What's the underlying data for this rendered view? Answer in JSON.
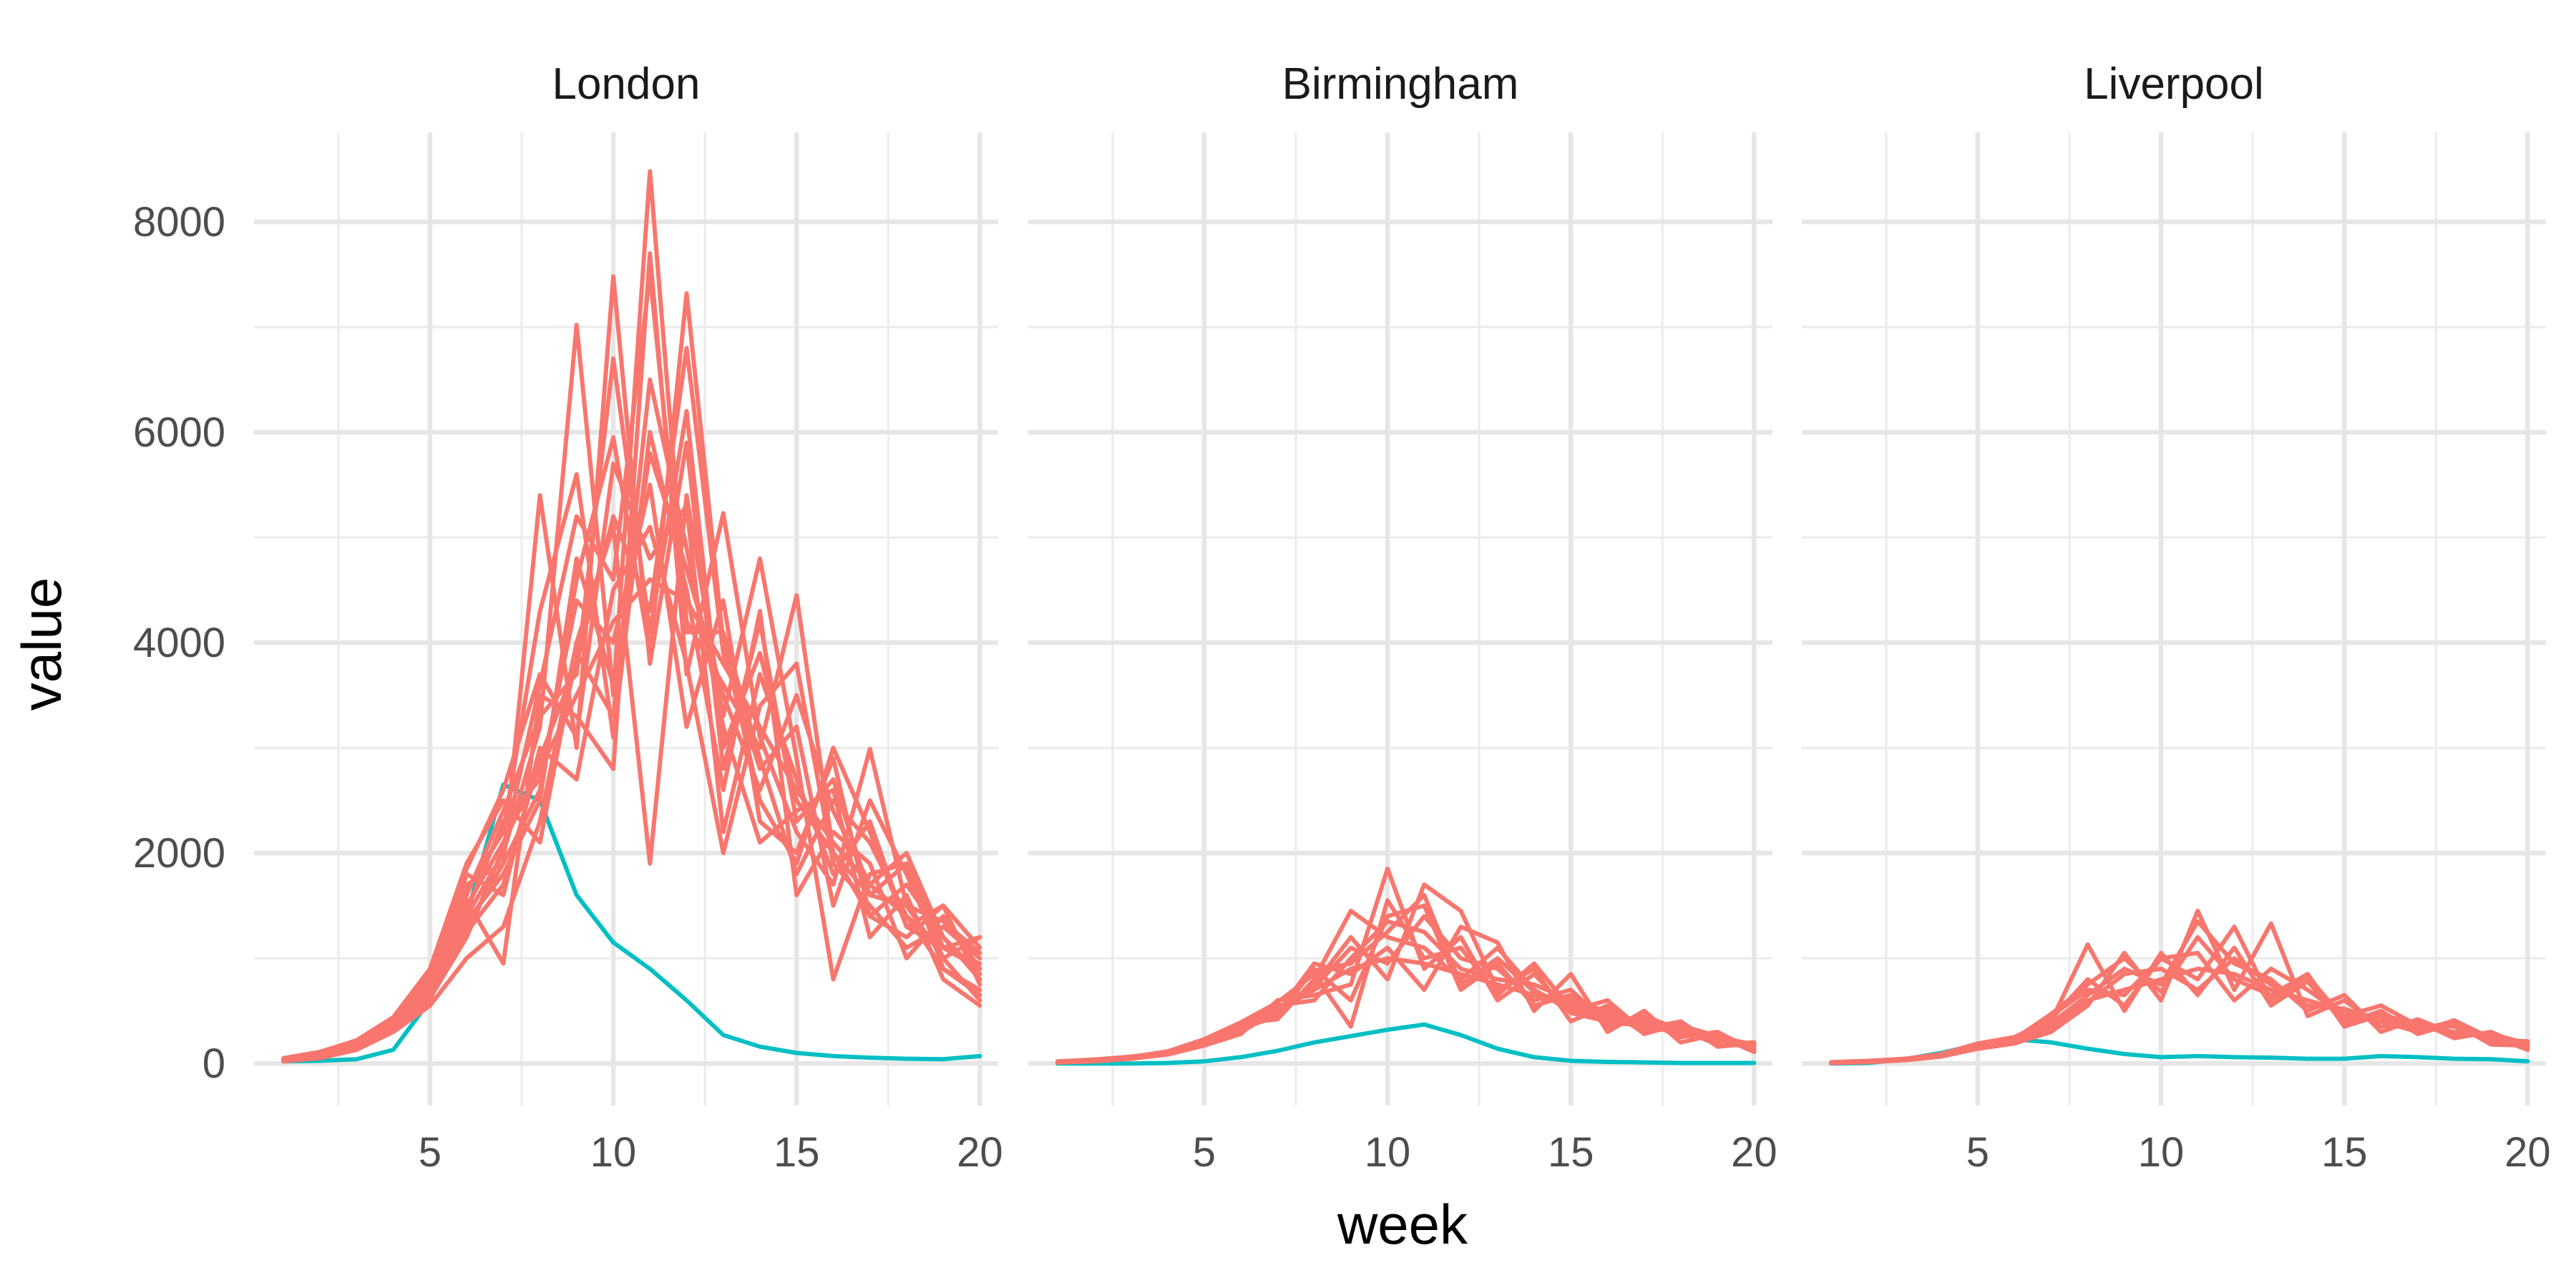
{
  "chart_data": {
    "type": "line",
    "xlabel": "week",
    "ylabel": "value",
    "x_ticks": [
      5,
      10,
      15,
      20
    ],
    "y_ticks": [
      0,
      2000,
      4000,
      6000,
      8000
    ],
    "xlim": [
      0.2,
      20.5
    ],
    "ylim": [
      -400,
      8850
    ],
    "grid": true,
    "legend": "none",
    "colors": {
      "simulation": "#F8766D",
      "observed": "#00BFC4"
    },
    "weeks": [
      1,
      2,
      3,
      4,
      5,
      6,
      7,
      8,
      9,
      10,
      11,
      12,
      13,
      14,
      15,
      16,
      17,
      18,
      19,
      20
    ],
    "panels": [
      {
        "title": "London",
        "observed": [
          20,
          25,
          40,
          130,
          600,
          1400,
          2650,
          2500,
          1600,
          1150,
          900,
          600,
          270,
          160,
          100,
          70,
          55,
          45,
          40,
          70
        ],
        "simulations": [
          [
            30,
            70,
            150,
            350,
            700,
            1500,
            2100,
            2800,
            3500,
            4200,
            4600,
            4400,
            3800,
            3200,
            2600,
            2100,
            1700,
            1400,
            1100,
            900
          ],
          [
            40,
            80,
            160,
            330,
            650,
            1300,
            1900,
            5400,
            3000,
            7480,
            3800,
            5900,
            2800,
            4200,
            2300,
            2700,
            1600,
            1900,
            1100,
            1200
          ],
          [
            25,
            60,
            140,
            310,
            600,
            1400,
            2000,
            3200,
            7020,
            3500,
            8480,
            4200,
            3600,
            3000,
            4450,
            2000,
            1400,
            1700,
            1200,
            800
          ],
          [
            35,
            90,
            200,
            420,
            800,
            1700,
            1900,
            2600,
            4600,
            5950,
            3900,
            7320,
            4000,
            2500,
            1900,
            3000,
            2200,
            1300,
            1500,
            1100
          ],
          [
            45,
            100,
            170,
            380,
            760,
            1550,
            950,
            3500,
            3300,
            2800,
            7700,
            3700,
            5230,
            3100,
            2200,
            1700,
            2990,
            1500,
            1000,
            600
          ],
          [
            20,
            50,
            130,
            300,
            550,
            1000,
            1300,
            2300,
            4000,
            5100,
            1900,
            5400,
            3300,
            4800,
            2900,
            800,
            1800,
            1900,
            900,
            700
          ],
          [
            30,
            75,
            180,
            360,
            720,
            1800,
            1600,
            3000,
            2700,
            4500,
            5100,
            3800,
            2000,
            3400,
            3800,
            1900,
            1500,
            1100,
            1300,
            1000
          ],
          [
            50,
            110,
            220,
            440,
            900,
            1900,
            2500,
            2100,
            3900,
            3300,
            6500,
            4900,
            3200,
            2100,
            2400,
            2600,
            1200,
            1600,
            800,
            550
          ],
          [
            40,
            95,
            190,
            400,
            820,
            1650,
            2200,
            4300,
            5600,
            3100,
            6000,
            4500,
            2600,
            4300,
            1600,
            2200,
            1900,
            1000,
            1400,
            900
          ],
          [
            25,
            65,
            150,
            320,
            640,
            1250,
            1700,
            2900,
            3800,
            5200,
            4300,
            6800,
            3900,
            2800,
            3200,
            1500,
            2500,
            1800,
            1000,
            1200
          ],
          [
            35,
            85,
            175,
            370,
            780,
            1450,
            2300,
            2700,
            4400,
            4000,
            5500,
            3200,
            4400,
            2300,
            2000,
            2900,
            1400,
            1200,
            1500,
            750
          ],
          [
            45,
            105,
            210,
            410,
            850,
            1850,
            2600,
            3700,
            3100,
            5700,
            4800,
            5300,
            2200,
            3700,
            2700,
            1800,
            2300,
            1300,
            1100,
            950
          ],
          [
            30,
            70,
            160,
            340,
            680,
            1350,
            1800,
            2500,
            4800,
            3600,
            5800,
            4700,
            3500,
            2600,
            3500,
            2400,
            1700,
            2000,
            1200,
            850
          ],
          [
            40,
            80,
            185,
            390,
            700,
            1600,
            2400,
            3300,
            3700,
            6700,
            4100,
            6200,
            3000,
            3900,
            2500,
            2000,
            1600,
            1500,
            1350,
            1050
          ],
          [
            20,
            55,
            145,
            305,
            620,
            1200,
            2050,
            3600,
            5200,
            4600,
            7500,
            4100,
            4100,
            2900,
            1800,
            2500,
            2100,
            1400,
            900,
            650
          ]
        ]
      },
      {
        "title": "Birmingham",
        "observed": [
          0,
          0,
          0,
          5,
          20,
          60,
          120,
          200,
          260,
          320,
          370,
          270,
          140,
          60,
          25,
          15,
          10,
          5,
          5,
          5
        ],
        "simulations": [
          [
            10,
            25,
            50,
            90,
            180,
            300,
            500,
            700,
            900,
            1000,
            950,
            850,
            750,
            650,
            550,
            450,
            350,
            300,
            250,
            180
          ],
          [
            15,
            30,
            55,
            100,
            200,
            380,
            420,
            800,
            1450,
            1200,
            1100,
            800,
            1100,
            700,
            500,
            600,
            300,
            350,
            200,
            150
          ],
          [
            8,
            20,
            45,
            85,
            170,
            280,
            600,
            650,
            750,
            1850,
            900,
            1200,
            600,
            850,
            480,
            400,
            400,
            250,
            300,
            120
          ],
          [
            12,
            28,
            60,
            110,
            220,
            330,
            450,
            900,
            600,
            1400,
            1500,
            700,
            950,
            550,
            650,
            350,
            450,
            320,
            180,
            200
          ],
          [
            20,
            35,
            65,
            105,
            210,
            360,
            520,
            750,
            1200,
            800,
            1700,
            1450,
            700,
            900,
            400,
            550,
            280,
            380,
            220,
            160
          ],
          [
            10,
            22,
            48,
            95,
            190,
            310,
            480,
            950,
            850,
            1100,
            700,
            1300,
            1150,
            500,
            850,
            300,
            500,
            200,
            280,
            140
          ],
          [
            14,
            32,
            58,
            98,
            205,
            350,
            550,
            600,
            1000,
            1350,
            1250,
            900,
            800,
            750,
            600,
            480,
            330,
            400,
            160,
            190
          ],
          [
            18,
            38,
            62,
            115,
            230,
            390,
            580,
            850,
            350,
            1550,
            1000,
            1100,
            650,
            950,
            520,
            430,
            420,
            270,
            240,
            130
          ],
          [
            9,
            24,
            52,
            92,
            185,
            295,
            510,
            720,
            1100,
            950,
            1400,
            1000,
            900,
            600,
            700,
            380,
            370,
            330,
            200,
            170
          ],
          [
            16,
            34,
            57,
            102,
            215,
            340,
            490,
            880,
            950,
            1250,
            1600,
            750,
            1000,
            680,
            560,
            510,
            290,
            360,
            260,
            110
          ]
        ]
      },
      {
        "title": "Liverpool",
        "observed": [
          0,
          5,
          40,
          100,
          180,
          230,
          200,
          140,
          90,
          60,
          70,
          60,
          55,
          45,
          45,
          70,
          60,
          45,
          40,
          20
        ],
        "simulations": [
          [
            5,
            15,
            35,
            70,
            150,
            200,
            350,
            600,
            700,
            800,
            900,
            850,
            700,
            600,
            500,
            420,
            350,
            300,
            250,
            200
          ],
          [
            8,
            20,
            40,
            80,
            170,
            220,
            400,
            1130,
            500,
            1050,
            650,
            1100,
            550,
            780,
            380,
            500,
            280,
            380,
            180,
            170
          ],
          [
            4,
            12,
            30,
            65,
            140,
            190,
            300,
            550,
            1050,
            600,
            1450,
            700,
            1330,
            450,
            600,
            350,
            400,
            240,
            300,
            150
          ],
          [
            10,
            22,
            45,
            85,
            180,
            240,
            450,
            700,
            650,
            1000,
            800,
            1300,
            600,
            830,
            420,
            480,
            320,
            400,
            220,
            210
          ],
          [
            6,
            18,
            38,
            75,
            160,
            210,
            380,
            650,
            900,
            750,
            1350,
            950,
            800,
            500,
            650,
            300,
            420,
            280,
            260,
            130
          ],
          [
            12,
            25,
            42,
            90,
            190,
            250,
            420,
            800,
            550,
            1000,
            1050,
            600,
            900,
            700,
            450,
            550,
            360,
            350,
            200,
            180
          ],
          [
            7,
            16,
            33,
            72,
            155,
            205,
            320,
            580,
            850,
            900,
            700,
            1000,
            750,
            550,
            520,
            400,
            300,
            410,
            240,
            160
          ],
          [
            9,
            21,
            39,
            82,
            175,
            230,
            470,
            750,
            1000,
            680,
            1200,
            800,
            650,
            850,
            350,
            460,
            380,
            260,
            280,
            190
          ]
        ]
      }
    ]
  }
}
